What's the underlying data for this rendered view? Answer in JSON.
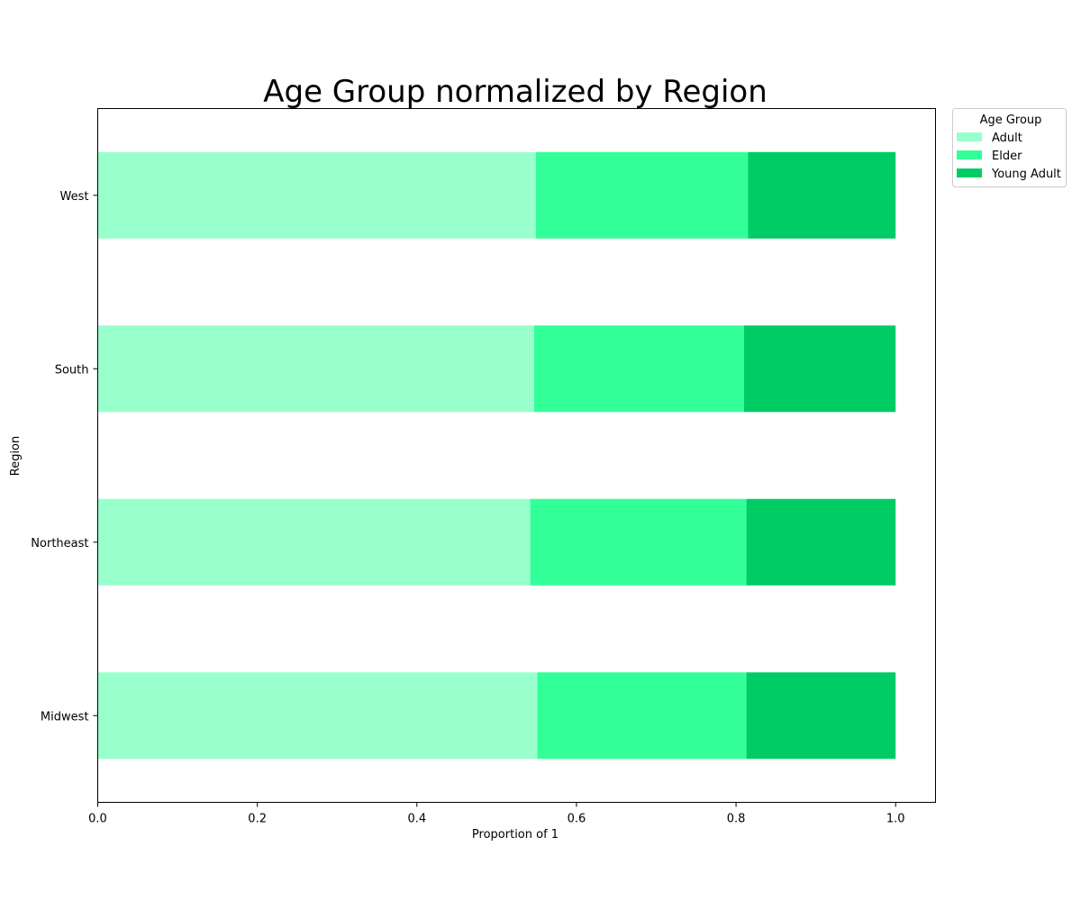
{
  "chart_data": {
    "type": "bar",
    "orientation": "horizontal",
    "stacked": true,
    "title": "Age Group normalized by Region",
    "xlabel": "Proportion of 1",
    "ylabel": "Region",
    "xlim": [
      0,
      1.05
    ],
    "xticks": [
      "0.0",
      "0.2",
      "0.4",
      "0.6",
      "0.8",
      "1.0"
    ],
    "xtick_values": [
      0,
      0.2,
      0.4,
      0.6,
      0.8,
      1.0
    ],
    "categories": [
      "Midwest",
      "Northeast",
      "South",
      "West"
    ],
    "series": [
      {
        "name": "Adult",
        "color": "#99ffcc",
        "values": [
          0.551,
          0.542,
          0.547,
          0.549
        ]
      },
      {
        "name": "Elder",
        "color": "#33ff99",
        "values": [
          0.262,
          0.271,
          0.263,
          0.266
        ]
      },
      {
        "name": "Young Adult",
        "color": "#00cc66",
        "values": [
          0.187,
          0.187,
          0.19,
          0.185
        ]
      }
    ],
    "legend": {
      "title": "Age Group",
      "placement": "outside-top-right"
    },
    "grid": false
  }
}
